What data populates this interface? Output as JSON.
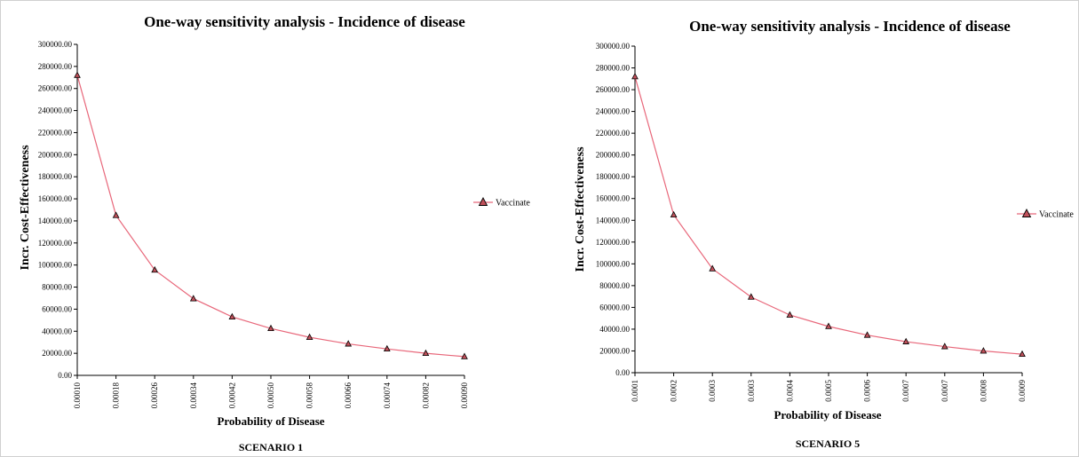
{
  "charts": [
    {
      "title": "One-way sensitivity analysis - Incidence of disease",
      "caption": "SCENARIO 1",
      "chart_data": {
        "type": "line",
        "title": "One-way sensitivity analysis - Incidence of disease",
        "xlabel": "Probability of Disease",
        "ylabel": "Incr. Cost-Effectiveness",
        "x": [
          0.0001,
          0.00018,
          0.00026,
          0.00034,
          0.00042,
          0.0005,
          0.00058,
          0.00066,
          0.00074,
          0.00082,
          0.0009
        ],
        "x_tick_labels": [
          "0.00010",
          "0.00018",
          "0.00026",
          "0.00034",
          "0.00042",
          "0.00050",
          "0.00058",
          "0.00066",
          "0.00074",
          "0.00082",
          "0.00090"
        ],
        "series": [
          {
            "name": "Vaccinate",
            "values": [
              272000,
              145000,
              95500,
              69500,
              53000,
              42500,
              34500,
              28500,
              24000,
              20000,
              17000
            ]
          }
        ],
        "ylim": [
          0,
          300000
        ],
        "y_ticks": [
          0,
          20000,
          40000,
          60000,
          80000,
          100000,
          120000,
          140000,
          160000,
          180000,
          200000,
          220000,
          240000,
          260000,
          280000,
          300000
        ],
        "y_tick_labels": [
          "0.00",
          "20000.00",
          "40000.00",
          "60000.00",
          "80000.00",
          "100000.00",
          "120000.00",
          "140000.00",
          "160000.00",
          "180000.00",
          "200000.00",
          "220000.00",
          "240000.00",
          "260000.00",
          "280000.00",
          "300000.00"
        ],
        "legend": "right",
        "grid": false,
        "colors": {
          "line": "#e8677a",
          "marker_fill": "#c0505a",
          "marker_edge": "#000000"
        }
      }
    },
    {
      "title": "One-way sensitivity analysis - Incidence of disease",
      "caption": "SCENARIO 5",
      "chart_data": {
        "type": "line",
        "title": "One-way sensitivity analysis - Incidence of disease",
        "xlabel": "Probability of Disease",
        "ylabel": "Incr. Cost-Effectiveness",
        "x": [
          0.0001,
          0.00018,
          0.00026,
          0.00034,
          0.00042,
          0.0005,
          0.00058,
          0.00066,
          0.00074,
          0.00082,
          0.0009
        ],
        "x_tick_labels": [
          "0.0001",
          "0.0002",
          "0.0003",
          "0.0003",
          "0.0004",
          "0.0005",
          "0.0006",
          "0.0007",
          "0.0007",
          "0.0008",
          "0.0009"
        ],
        "series": [
          {
            "name": "Vaccinate",
            "values": [
              272000,
              145000,
              95500,
              69500,
              53000,
              42500,
              34500,
              28500,
              24000,
              20000,
              17000
            ]
          }
        ],
        "ylim": [
          0,
          300000
        ],
        "y_ticks": [
          0,
          20000,
          40000,
          60000,
          80000,
          100000,
          120000,
          140000,
          160000,
          180000,
          200000,
          220000,
          240000,
          260000,
          280000,
          300000
        ],
        "y_tick_labels": [
          "0.00",
          "20000.00",
          "40000.00",
          "60000.00",
          "80000.00",
          "100000.00",
          "120000.00",
          "140000.00",
          "160000.00",
          "180000.00",
          "200000.00",
          "220000.00",
          "240000.00",
          "260000.00",
          "280000.00",
          "300000.00"
        ],
        "legend": "right",
        "grid": false,
        "colors": {
          "line": "#e8677a",
          "marker_fill": "#c0505a",
          "marker_edge": "#000000"
        }
      }
    }
  ]
}
